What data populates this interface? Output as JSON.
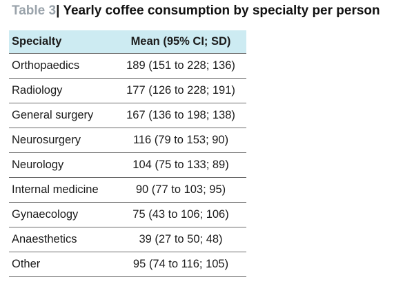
{
  "caption": {
    "label": "Table 3",
    "separator": "|",
    "title": " Yearly coffee consumption by specialty per person"
  },
  "table": {
    "headers": [
      "Specialty",
      "Mean (95% CI; SD)"
    ],
    "rows": [
      {
        "specialty": "Orthopaedics",
        "mean": "189 (151 to 228; 136)"
      },
      {
        "specialty": "Radiology",
        "mean": "177 (126 to 228; 191)"
      },
      {
        "specialty": "General surgery",
        "mean": "167 (136 to 198; 138)"
      },
      {
        "specialty": "Neurosurgery",
        "mean": "116 (79 to 153; 90)"
      },
      {
        "specialty": "Neurology",
        "mean": "104 (75 to 133; 89)"
      },
      {
        "specialty": "Internal medicine",
        "mean": "90 (77 to 103; 95)"
      },
      {
        "specialty": "Gynaecology",
        "mean": "75 (43 to 106; 106)"
      },
      {
        "specialty": "Anaesthetics",
        "mean": "39 (27 to 50; 48)"
      },
      {
        "specialty": "Other",
        "mean": "95 (74 to 116; 105)"
      }
    ]
  },
  "colors": {
    "header_background": "#cdebf2",
    "caption_label": "#9aa3ab",
    "rule": "#6a6a6a"
  }
}
